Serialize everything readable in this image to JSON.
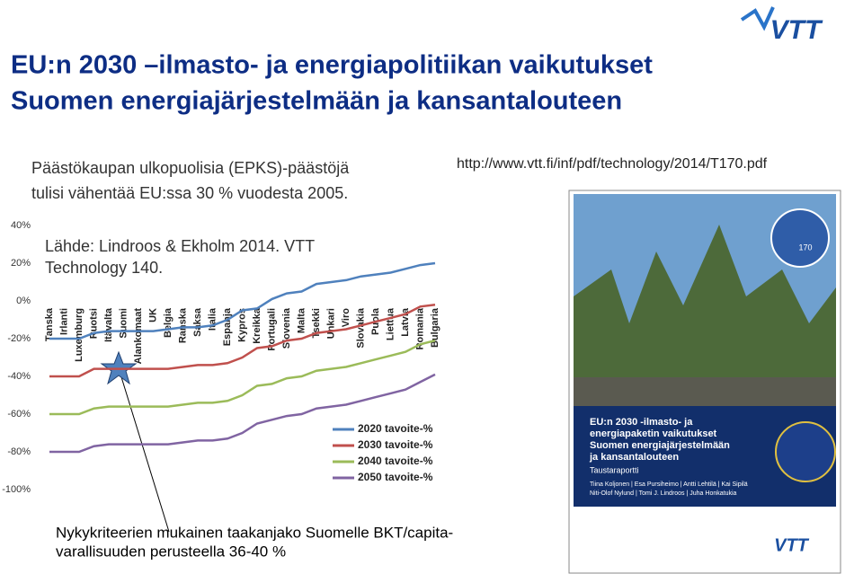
{
  "slide": {
    "title_line1": "EU:n  2030 –ilmasto- ja energiapolitiikan vaikutukset",
    "title_line2": "Suomen energiajärjestelmään ja kansantalouteen",
    "text_line1": "Päästökaupan ulkopuolisia (EPKS)-päästöjä",
    "text_line2": "tulisi vähentää EU:ssa 30 % vuodesta 2005.",
    "url": "http://www.vtt.fi/inf/pdf/technology/2014/T170.pdf",
    "source_line1": "Lähde: Lindroos & Ekholm 2014. VTT",
    "source_line2": "Technology 140.",
    "note_line1": "Nykykriteerien mukainen taakanjako Suomelle BKT/capita-",
    "note_line2": "varallisuuden perusteella 36-40 %",
    "logo": "VTT"
  },
  "cover": {
    "badge": "170",
    "title_line1": "EU:n 2030 -ilmasto- ja",
    "title_line2": "energiapaketin vaikutukset",
    "title_line3": "Suomen energiajärjestelmään",
    "title_line4": "ja kansantalouteen",
    "subtitle": "Taustaraportti",
    "authors_line1": "Tiina Koljonen | Esa Pursiheimo | Antti Lehtilä | Kai Sipilä",
    "authors_line2": "Niti-Olof Nylund | Tomi J. Lindroos | Juha Honkatukia",
    "logo": "VTT"
  },
  "chart_data": {
    "type": "line",
    "categories": [
      "Tanska",
      "Irlanti",
      "Luxemburg",
      "Ruotsi",
      "Itävalta",
      "Suomi",
      "Alankomaat",
      "UK",
      "Belgia",
      "Ranska",
      "Saksa",
      "Italia",
      "Espanja",
      "Kypros",
      "Kreikka",
      "Portugali",
      "Slovenia",
      "Malta",
      "Tsekki",
      "Unkari",
      "Viro",
      "Slovakia",
      "Puola",
      "Liettua",
      "Latvia",
      "Romania",
      "Bulgaria"
    ],
    "series": [
      {
        "name": "2020 tavoite-%",
        "color": "#4f81bd",
        "values": [
          -20,
          -20,
          -20,
          -17,
          -16,
          -16,
          -16,
          -16,
          -15,
          -14,
          -14,
          -13,
          -10,
          -5,
          -4,
          1,
          4,
          5,
          9,
          10,
          11,
          13,
          14,
          15,
          17,
          19,
          20
        ]
      },
      {
        "name": "2030 tavoite-%",
        "color": "#c0504d",
        "values": [
          -40,
          -40,
          -40,
          -36,
          -36,
          -36,
          -36,
          -36,
          -36,
          -35,
          -34,
          -34,
          -33,
          -30,
          -25,
          -24,
          -21,
          -20,
          -17,
          -16,
          -15,
          -13,
          -11,
          -9,
          -7,
          -3,
          -2
        ]
      },
      {
        "name": "2040 tavoite-%",
        "color": "#9bbb59",
        "values": [
          -60,
          -60,
          -60,
          -57,
          -56,
          -56,
          -56,
          -56,
          -56,
          -55,
          -54,
          -54,
          -53,
          -50,
          -45,
          -44,
          -41,
          -40,
          -37,
          -36,
          -35,
          -33,
          -31,
          -29,
          -27,
          -23,
          -21
        ]
      },
      {
        "name": "2050 tavoite-%",
        "color": "#8064a2",
        "values": [
          -80,
          -80,
          -80,
          -77,
          -76,
          -76,
          -76,
          -76,
          -76,
          -75,
          -74,
          -74,
          -73,
          -70,
          -65,
          -63,
          -61,
          -60,
          -57,
          -56,
          -55,
          -53,
          -51,
          -49,
          -47,
          -43,
          -39
        ]
      }
    ],
    "ylim": [
      -100,
      40
    ],
    "yticks": [
      {
        "value": -100,
        "label": "-100%"
      },
      {
        "value": -80,
        "label": "-80%"
      },
      {
        "value": -60,
        "label": "-60%"
      },
      {
        "value": -40,
        "label": "-40%"
      },
      {
        "value": -20,
        "label": "-20%"
      },
      {
        "value": 0,
        "label": "0%"
      },
      {
        "value": 20,
        "label": "20%"
      },
      {
        "value": 40,
        "label": "40%"
      }
    ]
  }
}
